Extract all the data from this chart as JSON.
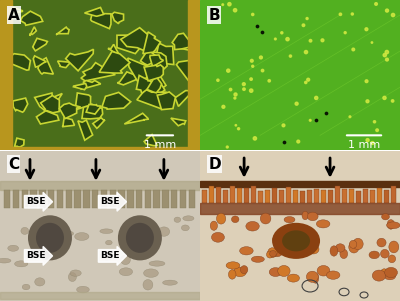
{
  "panel_labels": [
    "A",
    "B",
    "C",
    "D"
  ],
  "scale_bar_A": "1 mm",
  "scale_bar_B": "1 mm",
  "label_fontsize": 11,
  "scale_fontsize": 8,
  "bse_label": "BSE",
  "fig_bg": "#ffffff",
  "panel_A": {
    "bg_color": "#4a6e1a",
    "cell_color": "#2d4a10",
    "vein_color": "#c8d632",
    "border_color": "#b8961e"
  },
  "panel_B": {
    "bg_color": "#52b020",
    "vein_color": "#78d030",
    "dot_color": "#d0e840"
  },
  "panel_C": {
    "bg_color": "#d0c8b8",
    "tissue_color": "#a89878",
    "cell_color": "#888060"
  },
  "panel_D": {
    "bg_color": "#ddd0b8",
    "cell_color": "#c87030",
    "tissue_color": "#b06020"
  }
}
